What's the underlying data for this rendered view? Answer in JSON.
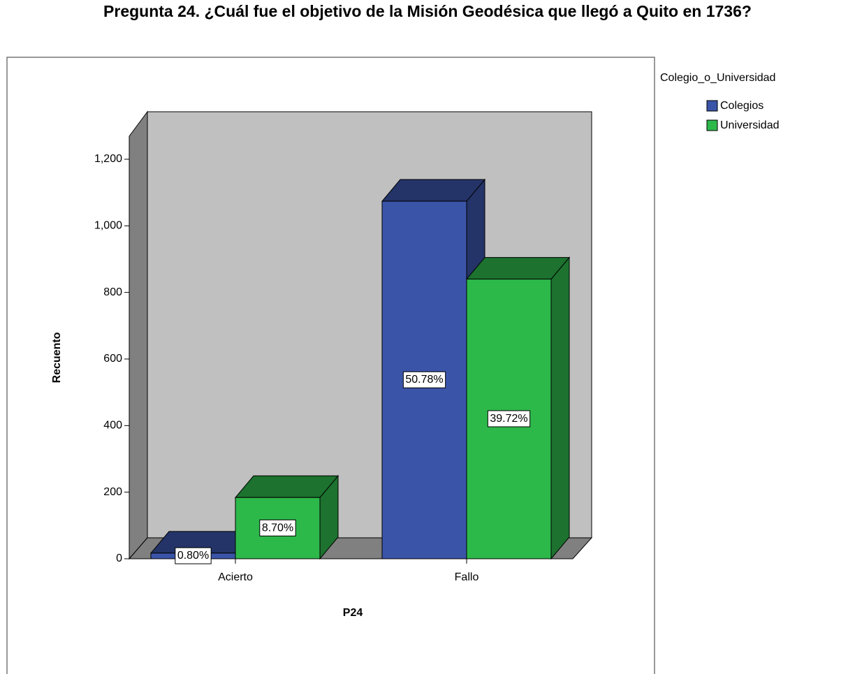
{
  "chart_data": {
    "type": "bar3d",
    "title": "Pregunta 24. ¿Cuál fue el objetivo de la Misión Geodésica que llegó a Quito en 1736?",
    "x_label": "P24",
    "y_label": "Recuento",
    "legend_title": "Colegio_o_Universidad",
    "categories": [
      "Acierto",
      "Fallo"
    ],
    "series": [
      {
        "name": "Colegios",
        "color": "#3a54a8",
        "values": [
          17,
          1074
        ],
        "value_labels": [
          "0.80%",
          "50.78%"
        ]
      },
      {
        "name": "Universidad",
        "color": "#2db84a",
        "values": [
          184,
          840
        ],
        "value_labels": [
          "8.70%",
          "39.72%"
        ]
      }
    ],
    "ylim": [
      0,
      1200
    ],
    "yticks": [
      0,
      200,
      400,
      600,
      800,
      {
        "value": 1000,
        "label": "1,000"
      },
      {
        "value": 1200,
        "label": "1,200"
      }
    ],
    "grid": false,
    "legend": "right"
  }
}
